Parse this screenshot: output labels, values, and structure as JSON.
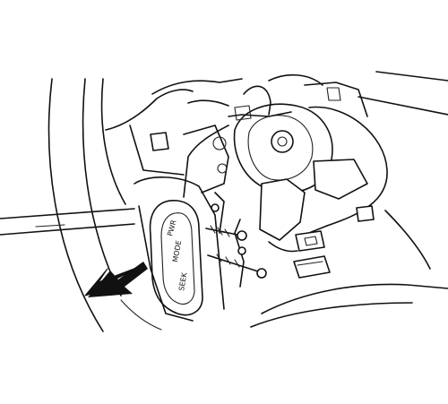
{
  "switch_labels": {
    "pwr": "PWR",
    "mode": "MODE",
    "seek": "SEEK"
  },
  "colors": {
    "line": "#111111",
    "arrow": "#111111",
    "background": "#ffffff"
  },
  "icons": {
    "direction_arrow": "arrow-left-down-icon"
  }
}
